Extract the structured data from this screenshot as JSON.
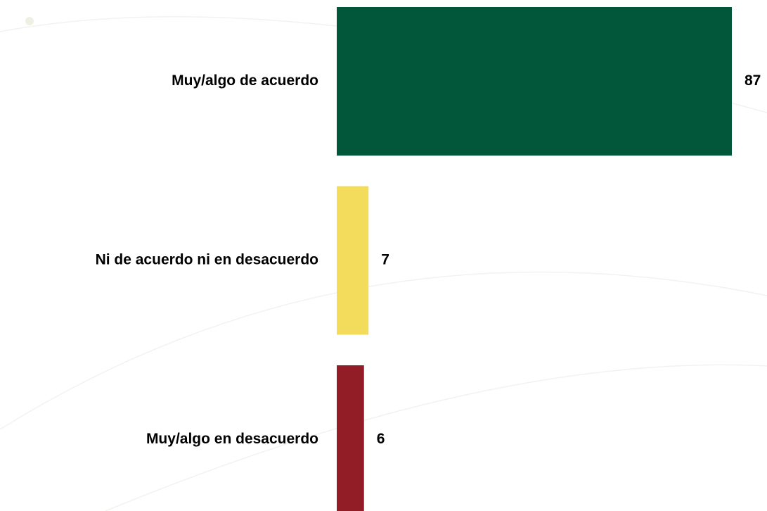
{
  "chart_data": {
    "type": "bar",
    "orientation": "horizontal",
    "categories": [
      "Muy/algo de acuerdo",
      "Ni de acuerdo ni en desacuerdo",
      "Muy/algo en desacuerdo"
    ],
    "values": [
      87,
      7,
      6
    ],
    "colors": [
      "#02573b",
      "#f3db5c",
      "#921d27"
    ]
  }
}
